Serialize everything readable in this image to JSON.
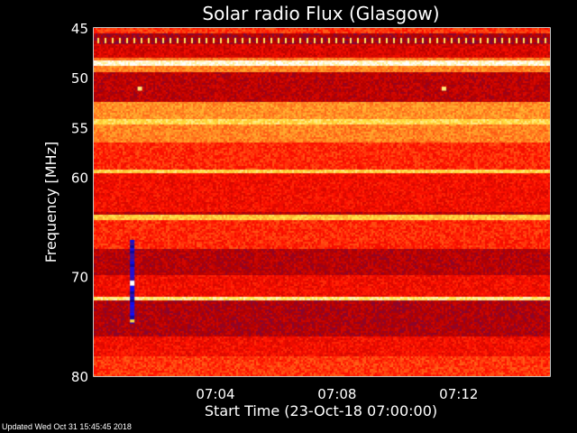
{
  "chart_data": {
    "type": "heatmap",
    "title": "Solar radio Flux (Glasgow)",
    "xlabel": "Start Time (23-Oct-18 07:00:00)",
    "ylabel": "Frequency [MHz]",
    "xlim_minutes_after_0700": [
      0,
      15
    ],
    "ylim": [
      45,
      80
    ],
    "y_inverted": true,
    "x_tick_labels": [
      "07:04",
      "07:08",
      "07:12"
    ],
    "x_tick_values_minutes": [
      4,
      8,
      12
    ],
    "y_tick_labels": [
      "45",
      "50",
      "55",
      "60",
      "70",
      "80"
    ],
    "y_tick_values": [
      45,
      50,
      55,
      60,
      70,
      80
    ],
    "colormap": [
      "#000000",
      "#1010ff",
      "#40108a",
      "#b00000",
      "#ff1000",
      "#ff8020",
      "#ffe040",
      "#ffffff"
    ],
    "frequency_bands": [
      {
        "from": 45.0,
        "to": 45.5,
        "intensity": 0.62
      },
      {
        "from": 45.5,
        "to": 46.6,
        "intensity": 0.42
      },
      {
        "from": 46.6,
        "to": 48.0,
        "intensity": 0.5
      },
      {
        "from": 48.0,
        "to": 48.3,
        "intensity": 0.7
      },
      {
        "from": 48.3,
        "to": 48.8,
        "intensity": 0.97
      },
      {
        "from": 48.8,
        "to": 49.4,
        "intensity": 0.72
      },
      {
        "from": 49.4,
        "to": 52.4,
        "intensity": 0.45
      },
      {
        "from": 52.4,
        "to": 54.2,
        "intensity": 0.74
      },
      {
        "from": 54.2,
        "to": 54.7,
        "intensity": 0.86
      },
      {
        "from": 54.7,
        "to": 56.5,
        "intensity": 0.72
      },
      {
        "from": 56.5,
        "to": 59.2,
        "intensity": 0.6
      },
      {
        "from": 59.2,
        "to": 59.6,
        "intensity": 0.85
      },
      {
        "from": 59.6,
        "to": 63.5,
        "intensity": 0.55
      },
      {
        "from": 63.5,
        "to": 63.8,
        "intensity": 0.45
      },
      {
        "from": 63.8,
        "to": 64.3,
        "intensity": 0.82
      },
      {
        "from": 64.3,
        "to": 67.2,
        "intensity": 0.6
      },
      {
        "from": 67.2,
        "to": 69.8,
        "intensity": 0.44
      },
      {
        "from": 69.8,
        "to": 72.0,
        "intensity": 0.55
      },
      {
        "from": 72.0,
        "to": 72.4,
        "intensity": 0.9
      },
      {
        "from": 72.4,
        "to": 76.0,
        "intensity": 0.43
      },
      {
        "from": 76.0,
        "to": 78.0,
        "intensity": 0.55
      },
      {
        "from": 78.0,
        "to": 80.0,
        "intensity": 0.62
      }
    ],
    "features": [
      {
        "label": "burst",
        "time_minutes": 1.25,
        "from": 66.3,
        "to": 74.6,
        "intensity": 0.15
      },
      {
        "label": "burst-peak",
        "time_minutes": 1.25,
        "from": 70.4,
        "to": 70.9,
        "intensity": 1.0
      },
      {
        "label": "burst-edge",
        "time_minutes": 1.25,
        "from": 74.3,
        "to": 74.6,
        "intensity": 0.85
      },
      {
        "label": "spot",
        "time_minutes": 1.5,
        "from": 50.9,
        "to": 51.3,
        "intensity": 0.9
      },
      {
        "label": "spot",
        "time_minutes": 11.5,
        "from": 50.9,
        "to": 51.3,
        "intensity": 0.9
      }
    ]
  },
  "footer": {
    "updated": "Updated Wed Oct 31 15:45:45 2018"
  }
}
